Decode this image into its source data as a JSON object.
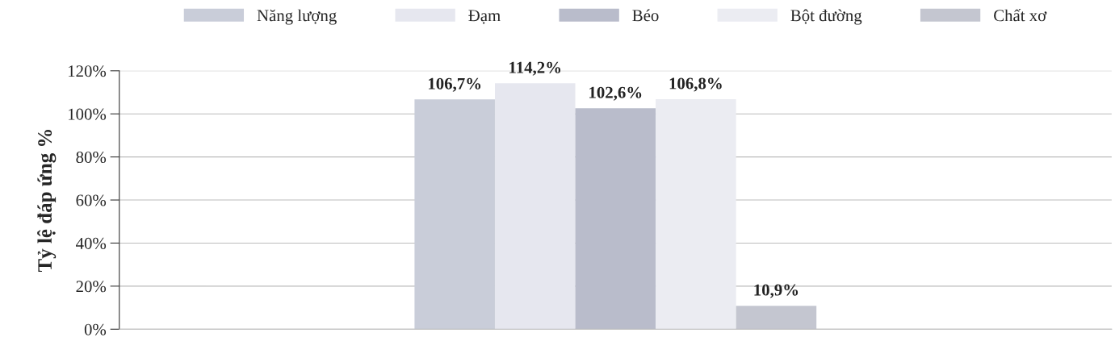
{
  "chart_data": {
    "type": "bar",
    "categories": [
      null
    ],
    "ylabel": "Tỷ lệ đáp ứng %",
    "series": [
      {
        "name": "Năng lượng",
        "color": "#c9cdd9",
        "values": [
          106.7
        ],
        "value_labels": [
          "106,7%"
        ]
      },
      {
        "name": "Đạm",
        "color": "#e6e7ef",
        "values": [
          114.2
        ],
        "value_labels": [
          "114,2%"
        ]
      },
      {
        "name": "Béo",
        "color": "#b9bccb",
        "values": [
          102.6
        ],
        "value_labels": [
          "102,6%"
        ]
      },
      {
        "name": "Bột đường",
        "color": "#ebecf2",
        "values": [
          106.8
        ],
        "value_labels": [
          "106,8%"
        ]
      },
      {
        "name": "Chất xơ",
        "color": "#c4c6d0",
        "values": [
          10.9
        ],
        "value_labels": [
          "10,9%"
        ]
      }
    ],
    "ylim": [
      0,
      120
    ],
    "yticks": [
      {
        "value": 0,
        "label": "0%"
      },
      {
        "value": 20,
        "label": "20%"
      },
      {
        "value": 40,
        "label": "40%"
      },
      {
        "value": 60,
        "label": "60%"
      },
      {
        "value": 80,
        "label": "80%"
      },
      {
        "value": 100,
        "label": "100%"
      },
      {
        "value": 120,
        "label": "120%"
      }
    ],
    "grid": "y",
    "legend": "top"
  }
}
